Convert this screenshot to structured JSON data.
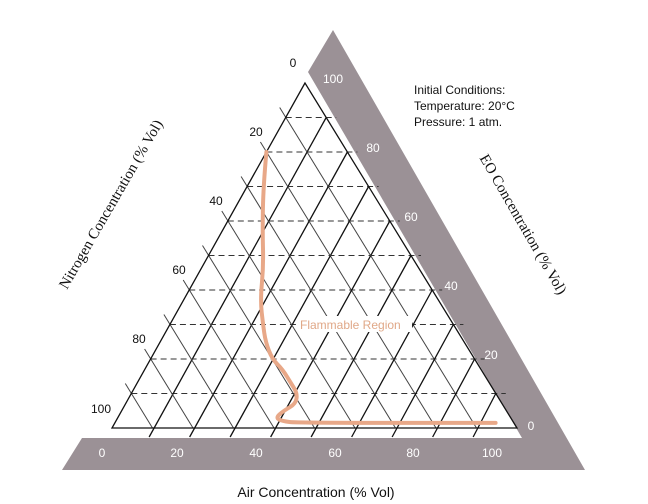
{
  "chart_data": {
    "type": "ternary",
    "axes": {
      "eo": {
        "label": "EO Concentration (% Vol)",
        "ticks": [
          "0",
          "20",
          "40",
          "60",
          "80",
          "100"
        ],
        "range": [
          0,
          100
        ]
      },
      "nitrogen": {
        "label": "Nitrogen Concentration (% Vol)",
        "ticks": [
          "0",
          "20",
          "40",
          "60",
          "80",
          "100"
        ],
        "range": [
          0,
          100
        ]
      },
      "air": {
        "label": "Air Concentration (% Vol)",
        "ticks": [
          "0",
          "20",
          "40",
          "60",
          "80",
          "100"
        ],
        "range": [
          0,
          100
        ]
      }
    },
    "grid_step": 10,
    "grid": true,
    "annotations": {
      "conditions": [
        "Initial Conditions:",
        "Temperature:  20°C",
        "Pressure: 1 atm."
      ],
      "region_label": "Flammable Region"
    },
    "boundary_curve": {
      "color": "#e8a888",
      "points": [
        {
          "eo": 80,
          "air": 0,
          "n2": 20
        },
        {
          "eo": 70,
          "air": 4,
          "n2": 26
        },
        {
          "eo": 57,
          "air": 10,
          "n2": 33
        },
        {
          "eo": 47,
          "air": 15,
          "n2": 38
        },
        {
          "eo": 37,
          "air": 19,
          "n2": 44
        },
        {
          "eo": 30,
          "air": 23,
          "n2": 47
        },
        {
          "eo": 25,
          "air": 26,
          "n2": 49
        },
        {
          "eo": 20,
          "air": 30,
          "n2": 50
        },
        {
          "eo": 17,
          "air": 34,
          "n2": 49
        },
        {
          "eo": 13,
          "air": 38,
          "n2": 49
        },
        {
          "eo": 10,
          "air": 41,
          "n2": 49
        },
        {
          "eo": 7,
          "air": 42,
          "n2": 51
        },
        {
          "eo": 5,
          "air": 40,
          "n2": 55
        },
        {
          "eo": 3,
          "air": 39,
          "n2": 58
        },
        {
          "eo": 2,
          "air": 41,
          "n2": 57
        },
        {
          "eo": 1.5,
          "air": 45,
          "n2": 53.5
        },
        {
          "eo": 1.5,
          "air": 94,
          "n2": 4.5
        }
      ]
    },
    "colors": {
      "band": "#9b9196",
      "curve": "#e8a888",
      "label": "#e0a888"
    }
  }
}
